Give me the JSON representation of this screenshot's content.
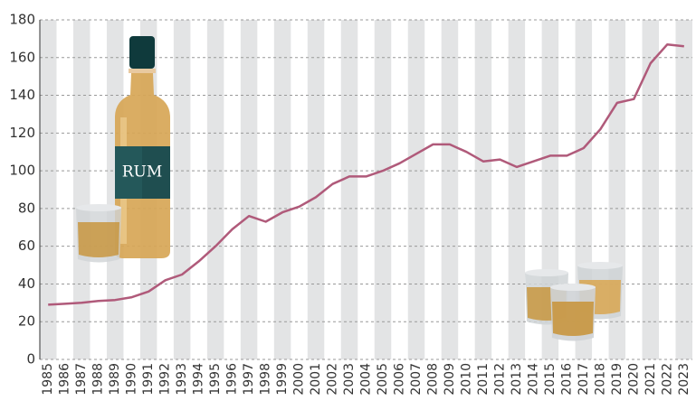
{
  "chart_data": {
    "type": "line",
    "categories": [
      "1985",
      "1986",
      "1987",
      "1988",
      "1989",
      "1990",
      "1991",
      "1992",
      "1993",
      "1994",
      "1995",
      "1996",
      "1997",
      "1998",
      "1999",
      "2000",
      "2001",
      "2002",
      "2003",
      "2004",
      "2005",
      "2006",
      "2007",
      "2008",
      "2009",
      "2010",
      "2011",
      "2012",
      "2013",
      "2014",
      "2015",
      "2016",
      "2017",
      "2018",
      "2019",
      "2020",
      "2021",
      "2022",
      "2023"
    ],
    "values": [
      29,
      29.5,
      30,
      31,
      31.5,
      33,
      36,
      42,
      45,
      52,
      60,
      69,
      76,
      73,
      78,
      81,
      86,
      93,
      97,
      97,
      100,
      104,
      109,
      114,
      114,
      110,
      105,
      106,
      102,
      105,
      108,
      108,
      112,
      122,
      136,
      138,
      157,
      167,
      166
    ],
    "color": "#b05a7a",
    "ylim": [
      0,
      180
    ],
    "yticks": [
      0,
      20,
      40,
      60,
      80,
      100,
      120,
      140,
      160,
      180
    ],
    "grid": true,
    "illustration_label": "RUM"
  }
}
